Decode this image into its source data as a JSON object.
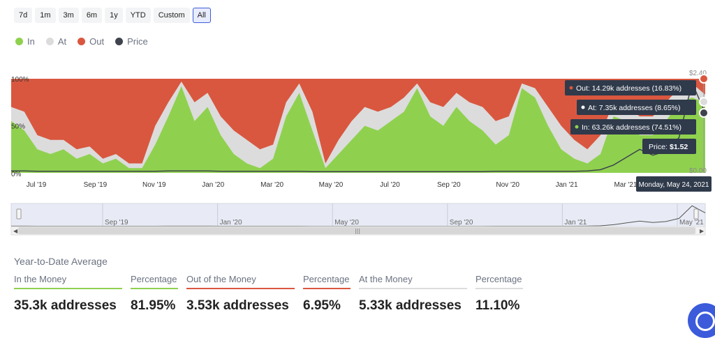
{
  "range_buttons": [
    "7d",
    "1m",
    "3m",
    "6m",
    "1y",
    "YTD",
    "Custom",
    "All"
  ],
  "active_range": "All",
  "legend": [
    {
      "label": "In",
      "color": "#8fd14f"
    },
    {
      "label": "At",
      "color": "#dcdcdc"
    },
    {
      "label": "Out",
      "color": "#d9573f"
    },
    {
      "label": "Price",
      "color": "#3f434d"
    }
  ],
  "chart_data": {
    "type": "area",
    "stacked_percent": true,
    "x_ticks": [
      "Jul '19",
      "Sep '19",
      "Nov '19",
      "Jan '20",
      "Mar '20",
      "May '20",
      "Jul '20",
      "Sep '20",
      "Nov '20",
      "Jan '21",
      "Mar '21",
      "May '21"
    ],
    "y_left_ticks": [
      "0%",
      "50%",
      "100%"
    ],
    "y_right_ticks": [
      "$0.00",
      "$2.40"
    ],
    "in_percent": [
      55,
      45,
      25,
      20,
      25,
      15,
      20,
      10,
      15,
      5,
      5,
      30,
      60,
      92,
      55,
      70,
      40,
      20,
      10,
      5,
      15,
      60,
      85,
      45,
      5,
      20,
      35,
      50,
      45,
      55,
      65,
      90,
      60,
      50,
      70,
      55,
      45,
      30,
      40,
      90,
      80,
      50,
      25,
      15,
      10,
      20,
      60,
      55,
      40,
      40,
      55,
      75,
      80,
      74.51
    ],
    "at_percent": [
      15,
      20,
      15,
      15,
      10,
      10,
      8,
      5,
      5,
      5,
      5,
      20,
      15,
      5,
      20,
      15,
      20,
      25,
      25,
      20,
      15,
      15,
      10,
      20,
      5,
      15,
      20,
      20,
      20,
      15,
      15,
      5,
      15,
      20,
      15,
      20,
      25,
      25,
      20,
      5,
      10,
      20,
      25,
      20,
      15,
      20,
      15,
      15,
      20,
      20,
      20,
      15,
      15,
      8.65
    ],
    "price": [
      0.05,
      0.05,
      0.04,
      0.04,
      0.04,
      0.04,
      0.04,
      0.04,
      0.04,
      0.04,
      0.04,
      0.04,
      0.05,
      0.05,
      0.05,
      0.05,
      0.04,
      0.04,
      0.04,
      0.04,
      0.04,
      0.04,
      0.04,
      0.03,
      0.03,
      0.03,
      0.03,
      0.03,
      0.03,
      0.03,
      0.03,
      0.03,
      0.03,
      0.03,
      0.03,
      0.03,
      0.03,
      0.04,
      0.04,
      0.04,
      0.04,
      0.04,
      0.04,
      0.04,
      0.05,
      0.08,
      0.2,
      0.4,
      0.6,
      0.45,
      0.55,
      0.9,
      2.3,
      1.52
    ],
    "tooltip": {
      "out": "Out: 14.29k addresses (16.83%)",
      "at": "At: 7.35k addresses (8.65%)",
      "in": "In: 63.26k addresses (74.51%)",
      "price_label": "Price:",
      "price_value": "$1.52",
      "date": "Monday, May 24, 2021"
    },
    "navigator_ticks": [
      "Sep '19",
      "Jan '20",
      "May '20",
      "Sep '20",
      "Jan '21",
      "May '21"
    ]
  },
  "summary": {
    "title": "Year-to-Date Average",
    "columns": [
      {
        "label": "In the Money",
        "value": "35.3k addresses",
        "color": "#8fd14f"
      },
      {
        "label": "Percentage",
        "value": "81.95%",
        "color": "#8fd14f"
      },
      {
        "label": "Out of the Money",
        "value": "3.53k addresses",
        "color": "#d9573f"
      },
      {
        "label": "Percentage",
        "value": "6.95%",
        "color": "#d9573f"
      },
      {
        "label": "At the Money",
        "value": "5.33k addresses",
        "color": "#dcdcdc"
      },
      {
        "label": "Percentage",
        "value": "11.10%",
        "color": "#dcdcdc"
      }
    ]
  }
}
